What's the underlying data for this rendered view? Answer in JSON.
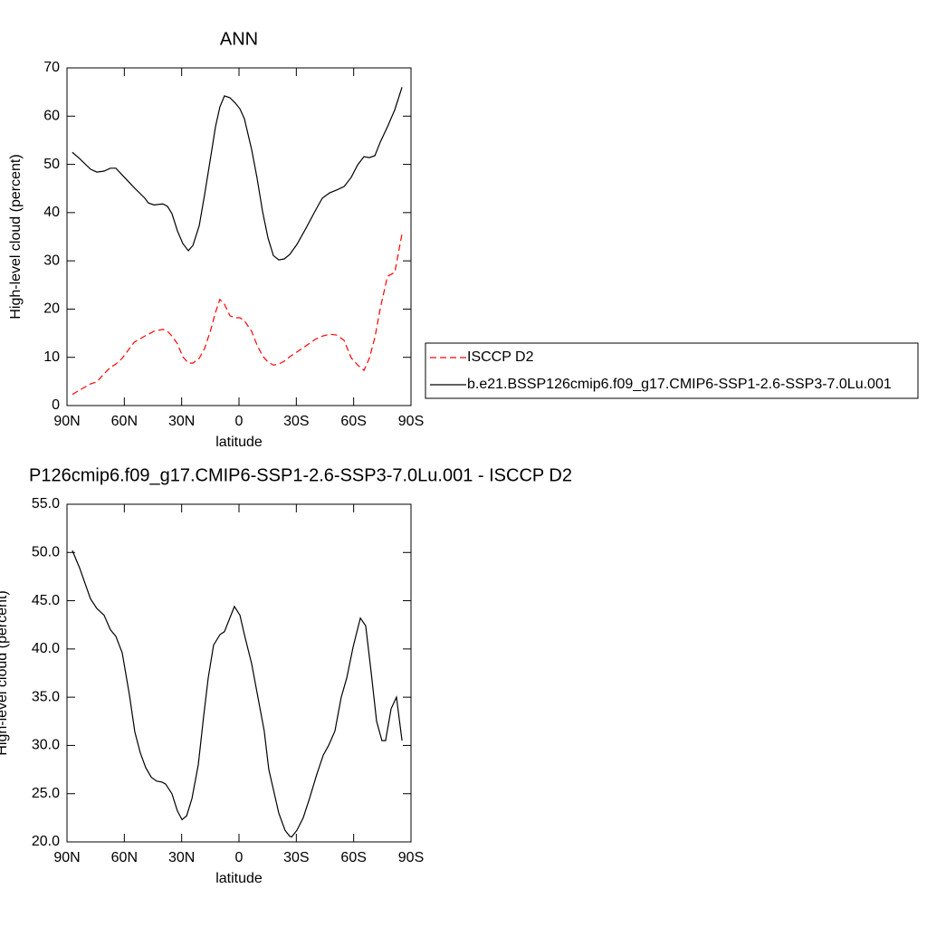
{
  "chart_data": [
    {
      "type": "line",
      "title": "ANN",
      "xlabel": "latitude",
      "ylabel": "High-level cloud (percent)",
      "x": [
        87.2,
        83.4,
        77.7,
        74.4,
        70.6,
        67.3,
        64.4,
        61.1,
        54.9,
        49.3,
        47.4,
        44.5,
        39.8,
        37.4,
        35.1,
        32.2,
        29.4,
        26.5,
        24.1,
        20.8,
        18.0,
        14.7,
        12.3,
        10.0,
        7.6,
        4.7,
        1.9,
        -0.5,
        -2.8,
        -6.6,
        -9.4,
        -12.3,
        -15.2,
        -18.0,
        -20.8,
        -23.7,
        -26.5,
        -30.3,
        -35.1,
        -39.8,
        -43.6,
        -47.4,
        -51.2,
        -55.0,
        -58.7,
        -62.1,
        -65.4,
        -68.2,
        -71.1,
        -73.9,
        -77.7,
        -81.5,
        -85.3
      ],
      "series": [
        {
          "name": "ISCCP D2",
          "color": "#ff0000",
          "line_style": "dashed",
          "values": [
            2.3,
            3.2,
            4.5,
            4.9,
            6.6,
            7.9,
            8.6,
            9.8,
            13.1,
            14.4,
            14.8,
            15.4,
            15.8,
            15.4,
            14.4,
            12.8,
            10.1,
            8.8,
            8.8,
            9.8,
            11.8,
            15.8,
            19.3,
            22.0,
            21.0,
            18.6,
            18.2,
            18.2,
            17.6,
            15.4,
            12.6,
            10.3,
            9.0,
            8.4,
            8.6,
            9.2,
            10.1,
            11.1,
            12.4,
            13.7,
            14.4,
            14.8,
            14.6,
            13.5,
            9.9,
            8.4,
            7.3,
            9.8,
            14.1,
            20.1,
            26.8,
            27.6,
            35.6
          ]
        },
        {
          "name": "b.e21.BSSP126cmip6.f09_g17.CMIP6-SSP1-2.6-SSP3-7.0Lu.001",
          "color": "#000000",
          "line_style": "solid",
          "values": [
            52.5,
            51.2,
            49.0,
            48.4,
            48.6,
            49.2,
            49.2,
            47.8,
            45.2,
            43.0,
            42.0,
            41.6,
            41.8,
            41.3,
            39.8,
            36.2,
            33.6,
            32.1,
            33.2,
            37.3,
            43.7,
            51.8,
            57.8,
            61.9,
            64.2,
            63.8,
            62.7,
            61.5,
            59.5,
            53.1,
            47.3,
            40.3,
            34.7,
            31.1,
            30.2,
            30.4,
            31.3,
            33.4,
            36.8,
            40.3,
            43.0,
            44.1,
            44.7,
            45.4,
            47.3,
            49.9,
            51.6,
            51.4,
            51.8,
            54.6,
            57.8,
            61.3,
            66.0
          ]
        }
      ],
      "xlim": [
        90,
        -90
      ],
      "xticks": [
        {
          "value": 90,
          "label": "90N"
        },
        {
          "value": 60,
          "label": "60N"
        },
        {
          "value": 30,
          "label": "30N"
        },
        0,
        {
          "value": -30,
          "label": "30S"
        },
        {
          "value": -60,
          "label": "60S"
        },
        {
          "value": -90,
          "label": "90S"
        }
      ],
      "ylim": [
        0,
        70
      ],
      "yticks": [
        0,
        10,
        20,
        30,
        40,
        50,
        60,
        70
      ],
      "legend": "right"
    },
    {
      "type": "line",
      "title": "P126cmip6.f09_g17.CMIP6-SSP1-2.6-SSP3-7.0Lu.001 - ISCCP D2",
      "xlabel": "latitude",
      "ylabel": "High-level cloud (percent)",
      "x": [
        87.2,
        83.4,
        77.7,
        74.4,
        70.6,
        67.3,
        64.4,
        61.1,
        57.3,
        54.5,
        51.6,
        48.8,
        45.9,
        43.1,
        40.3,
        38.4,
        35.1,
        32.2,
        29.8,
        27.4,
        24.6,
        21.3,
        18.5,
        16.1,
        13.3,
        9.9,
        7.6,
        5.2,
        2.4,
        -0.5,
        -2.8,
        -6.6,
        -9.9,
        -13.2,
        -15.6,
        -18.5,
        -20.8,
        -24.1,
        -26.5,
        -27.5,
        -30.3,
        -33.6,
        -36.9,
        -40.7,
        -44.1,
        -46.9,
        -50.2,
        -53.5,
        -56.4,
        -59.7,
        -63.5,
        -66.3,
        -69.2,
        -72.0,
        -74.8,
        -76.7,
        -79.6,
        -82.4,
        -85.3
      ],
      "series": [
        {
          "color": "#000000",
          "line_style": "solid",
          "values": [
            50.2,
            48.4,
            45.2,
            44.2,
            43.5,
            42.0,
            41.3,
            39.6,
            35.2,
            31.4,
            29.2,
            27.7,
            26.7,
            26.3,
            26.2,
            26.0,
            25.0,
            23.2,
            22.3,
            22.7,
            24.5,
            28.0,
            33.0,
            37.0,
            40.4,
            41.5,
            41.8,
            43.0,
            44.4,
            43.5,
            41.5,
            38.5,
            35.0,
            31.5,
            27.5,
            25.0,
            23.0,
            21.2,
            20.6,
            20.5,
            21.2,
            22.5,
            24.5,
            27.0,
            29.0,
            30.0,
            31.5,
            35.0,
            37.0,
            40.2,
            43.2,
            42.4,
            37.5,
            32.5,
            30.5,
            30.5,
            33.8,
            35.0,
            30.5
          ]
        }
      ],
      "xlim": [
        90,
        -90
      ],
      "xticks": [
        {
          "value": 90,
          "label": "90N"
        },
        {
          "value": 60,
          "label": "60N"
        },
        {
          "value": 30,
          "label": "30N"
        },
        0,
        {
          "value": -30,
          "label": "30S"
        },
        {
          "value": -60,
          "label": "60S"
        },
        {
          "value": -90,
          "label": "90S"
        }
      ],
      "ylim": [
        20,
        55
      ],
      "yticks": [
        {
          "value": 20,
          "label": "20.0"
        },
        {
          "value": 25,
          "label": "25.0"
        },
        {
          "value": 30,
          "label": "30.0"
        },
        {
          "value": 35,
          "label": "35.0"
        },
        {
          "value": 40,
          "label": "40.0"
        },
        {
          "value": 45,
          "label": "45.0"
        },
        {
          "value": 50,
          "label": "50.0"
        },
        {
          "value": 55,
          "label": "55.0"
        }
      ]
    }
  ]
}
